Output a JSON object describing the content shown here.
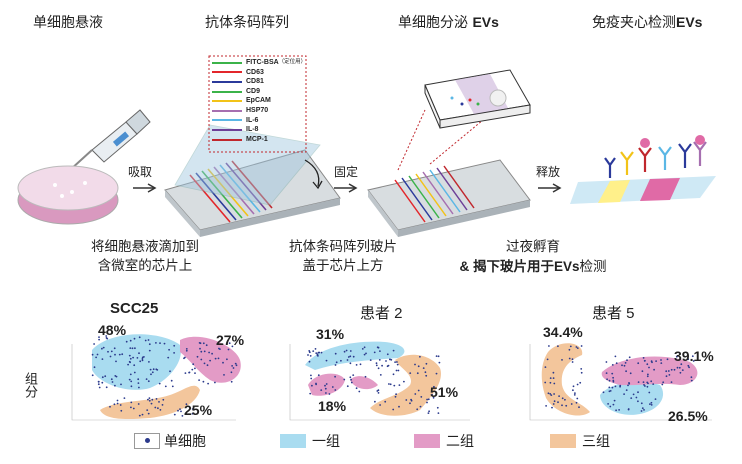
{
  "headers": {
    "single_cell": "单细胞悬液",
    "barcode": "抗体条码阵列",
    "secrete_prefix": "单细胞分泌 ",
    "secrete_bold": "EVs",
    "sandwich_prefix": "免疫夹心检测",
    "sandwich_bold": "EVs"
  },
  "steps": {
    "absorb": "吸取",
    "fix": "固定",
    "release": "释放"
  },
  "captions": {
    "c1_line1": "将细胞悬液滴加到",
    "c1_line2": "含微室的芯片上",
    "c2_line1": "抗体条码阵列玻片",
    "c2_line2": "盖于芯片上方",
    "c3_line1": "过夜孵育",
    "c3_line2_a": "& 揭下玻片用于",
    "c3_line2_b": "EVs",
    "c3_line2_c": "检测"
  },
  "barcode_legend": [
    {
      "label": "FITC-BSA",
      "note": "（定位用）",
      "color": "#3bb34a"
    },
    {
      "label": "CD63",
      "color": "#e3262b"
    },
    {
      "label": "CD81",
      "color": "#2b3a9b"
    },
    {
      "label": "CD9",
      "color": "#3bb34a"
    },
    {
      "label": "EpCAM",
      "color": "#f2c318"
    },
    {
      "label": "HSP70",
      "color": "#a66fb0"
    },
    {
      "label": "IL-6",
      "color": "#5bb7e5"
    },
    {
      "label": "IL-8",
      "color": "#6d3f97"
    },
    {
      "label": "MCP-1",
      "color": "#c0272d"
    }
  ],
  "panels": [
    {
      "title": "SCC25",
      "title_bold": true,
      "pct_blue": "48%",
      "pct_pink": "27%",
      "pct_orange": "25%"
    },
    {
      "title": "患者 2",
      "title_bold": false,
      "pct_blue": "31%",
      "pct_pink": "18%",
      "pct_orange": "51%"
    },
    {
      "title": "患者 5",
      "title_bold": false,
      "pct_blue": "26.5%",
      "pct_pink": "39.1%",
      "pct_orange": "34.4%"
    }
  ],
  "y_axis_label": "组分",
  "legend": {
    "single_cell": "单细胞",
    "group1": "一组",
    "group2": "二组",
    "group3": "三组"
  },
  "colors": {
    "blue": "#a9dcf0",
    "pink": "#e39bc6",
    "orange": "#f3c69c",
    "dot": "#2b3a8c"
  }
}
